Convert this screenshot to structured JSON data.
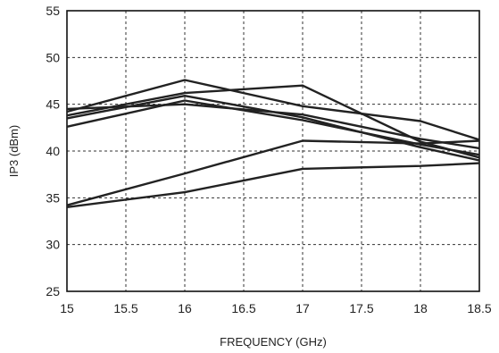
{
  "chart_data": {
    "type": "line",
    "title": "",
    "xlabel": "FREQUENCY (GHz)",
    "ylabel": "IP3  (dBm)",
    "xlim": [
      15,
      18.5
    ],
    "ylim": [
      25,
      55
    ],
    "xticks": [
      "15",
      "15.5",
      "16",
      "16.5",
      "17",
      "17.5",
      "18",
      "18.5"
    ],
    "yticks": [
      "25",
      "30",
      "35",
      "40",
      "45",
      "50",
      "55"
    ],
    "grid": true,
    "grid_style": "dashed",
    "line_color": "#222222",
    "series": [
      {
        "x": [
          15,
          16,
          17,
          18,
          18.5
        ],
        "y": [
          44.2,
          47.6,
          44.8,
          43.2,
          41.2
        ]
      },
      {
        "x": [
          15,
          16,
          17,
          18,
          18.5
        ],
        "y": [
          43.8,
          46.2,
          47.0,
          41.0,
          39.3
        ]
      },
      {
        "x": [
          15,
          16,
          17,
          18,
          18.5
        ],
        "y": [
          44.5,
          45.0,
          43.9,
          41.3,
          40.3
        ]
      },
      {
        "x": [
          15,
          16,
          17,
          18,
          18.5
        ],
        "y": [
          42.6,
          45.4,
          43.3,
          40.7,
          39.6
        ]
      },
      {
        "x": [
          15,
          16,
          17,
          18,
          18.5
        ],
        "y": [
          43.5,
          45.9,
          43.6,
          40.4,
          39.0
        ]
      },
      {
        "x": [
          15,
          16,
          17,
          18,
          18.5
        ],
        "y": [
          34.2,
          37.6,
          41.1,
          40.8,
          41.1
        ]
      },
      {
        "x": [
          15,
          16,
          17,
          18,
          18.5
        ],
        "y": [
          34.0,
          35.6,
          38.1,
          38.4,
          38.7
        ]
      }
    ]
  }
}
